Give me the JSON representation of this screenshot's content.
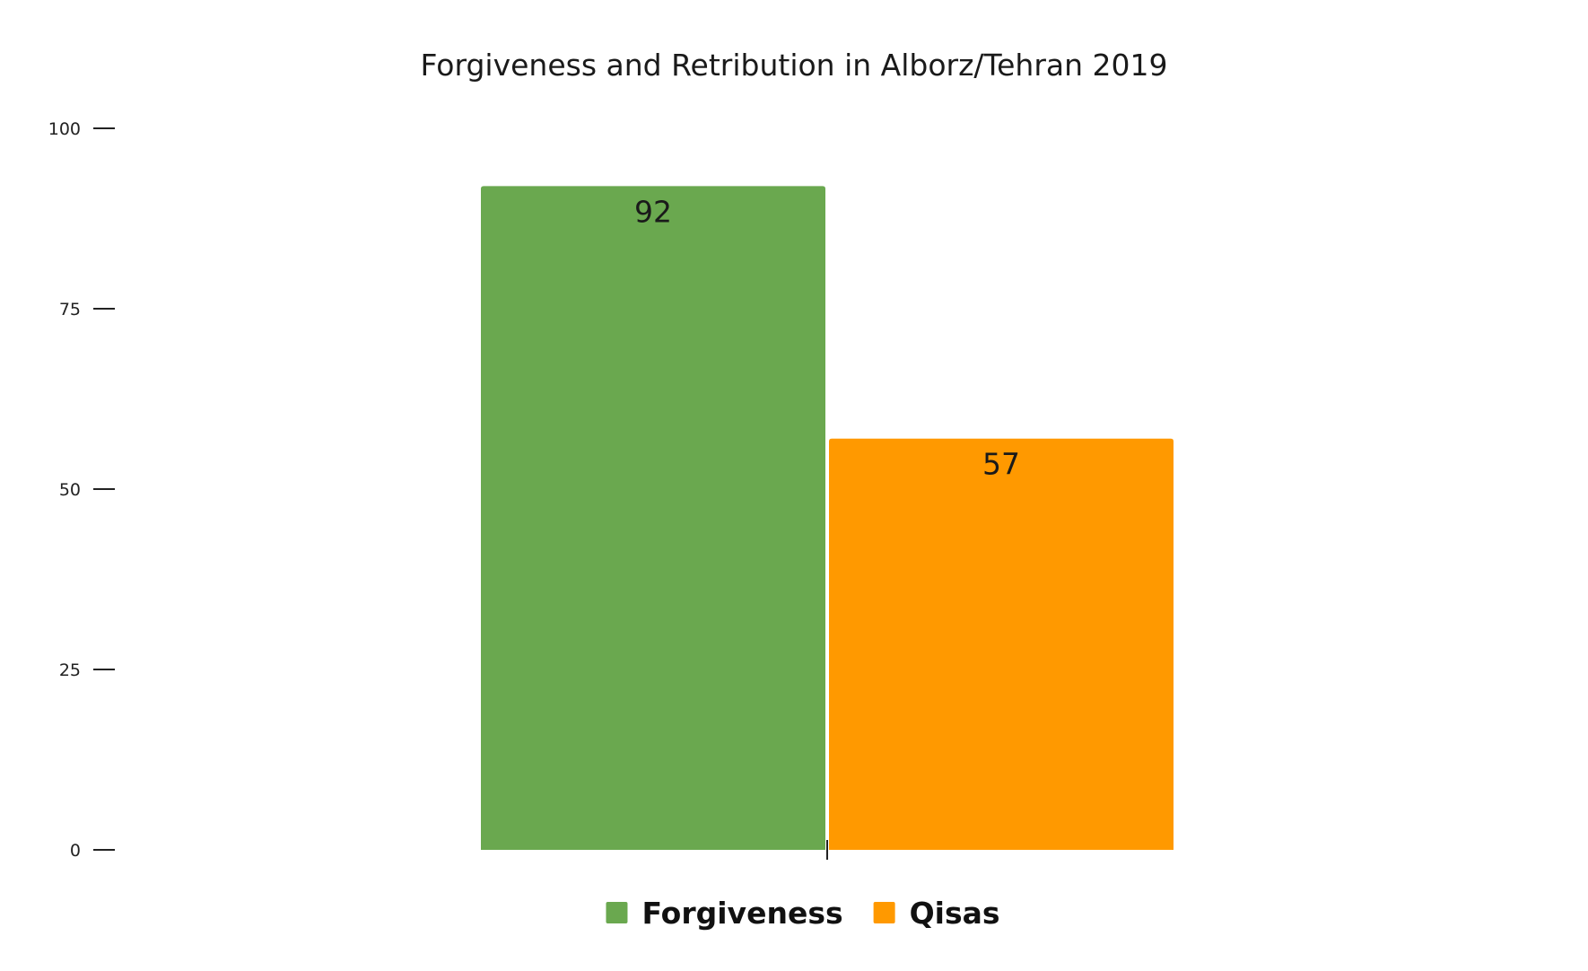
{
  "chart_data": {
    "type": "bar",
    "title": "Forgiveness and Retribution in Alborz/Tehran 2019",
    "categories": [
      ""
    ],
    "series": [
      {
        "name": "Forgiveness",
        "values": [
          92
        ],
        "color": "#6aa84f"
      },
      {
        "name": "Qisas",
        "values": [
          57
        ],
        "color": "#ff9900"
      }
    ],
    "ylim": [
      0,
      100
    ],
    "yticks": [
      0,
      25,
      50,
      75,
      100
    ],
    "xlabel": "",
    "ylabel": "",
    "grid": false,
    "legend": "bottom-center",
    "data_labels": true
  }
}
